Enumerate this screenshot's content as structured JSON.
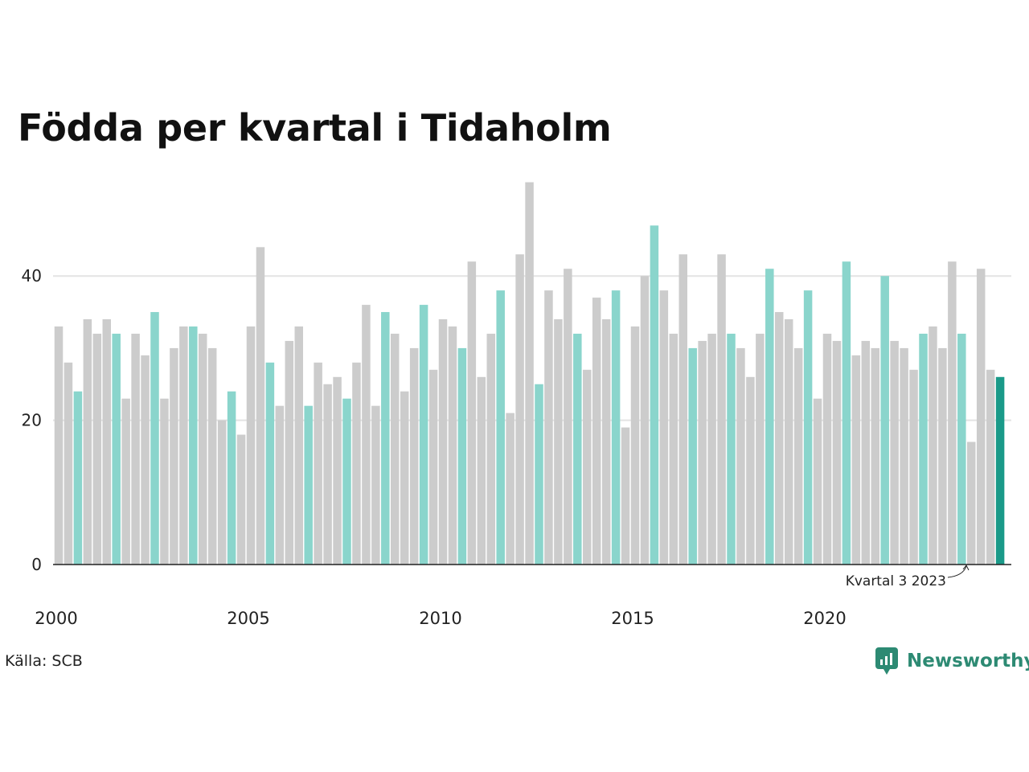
{
  "title": "Födda per kvartal i Tidaholm",
  "source": "Källa: SCB",
  "brand": "Newsworthy",
  "annotation": "Kvartal 3 2023",
  "colors": {
    "default": "#cccccc",
    "q3": "#8ad5cc",
    "latest": "#1a9a89",
    "grid": "#e3e3e3",
    "axis": "#222222",
    "brand": "#2d8a73"
  },
  "chart_data": {
    "type": "bar",
    "title": "Födda per kvartal i Tidaholm",
    "xlabel": "",
    "ylabel": "",
    "ylim": [
      0,
      53
    ],
    "yticks": [
      0,
      20,
      40
    ],
    "xtick_labels": [
      "2000",
      "2005",
      "2010",
      "2015",
      "2020"
    ],
    "grid": "horizontal",
    "start": {
      "year": 2000,
      "quarter": 1
    },
    "values": [
      33,
      28,
      24,
      34,
      32,
      34,
      32,
      23,
      32,
      29,
      35,
      23,
      30,
      33,
      33,
      32,
      30,
      20,
      24,
      18,
      33,
      44,
      28,
      22,
      31,
      33,
      22,
      28,
      25,
      26,
      23,
      28,
      36,
      22,
      35,
      32,
      24,
      30,
      36,
      27,
      34,
      33,
      30,
      42,
      26,
      32,
      38,
      21,
      43,
      53,
      25,
      38,
      34,
      41,
      32,
      27,
      37,
      34,
      38,
      19,
      33,
      40,
      47,
      38,
      32,
      43,
      30,
      31,
      32,
      43,
      32,
      30,
      26,
      32,
      41,
      35,
      34,
      30,
      38,
      23,
      32,
      31,
      42,
      29,
      31,
      30,
      40,
      31,
      30,
      27,
      32,
      33,
      30,
      42,
      32,
      17,
      41,
      27,
      26
    ],
    "highlight": "Kvartal 3 2023"
  }
}
